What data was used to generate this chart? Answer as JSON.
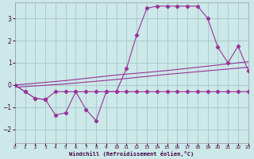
{
  "xlabel": "Windchill (Refroidissement éolien,°C)",
  "background_color": "#cce8e8",
  "grid_color": "#a8cccc",
  "line_color": "#993399",
  "xlim": [
    0,
    23
  ],
  "ylim": [
    -2.6,
    3.7
  ],
  "xticks": [
    0,
    1,
    2,
    3,
    4,
    5,
    6,
    7,
    8,
    9,
    10,
    11,
    12,
    13,
    14,
    15,
    16,
    17,
    18,
    19,
    20,
    21,
    22,
    23
  ],
  "yticks": [
    -2,
    -1,
    0,
    1,
    2,
    3
  ],
  "s1_x": [
    0,
    1,
    2,
    3,
    4,
    5,
    6,
    7,
    8,
    9,
    10,
    11,
    12,
    13,
    14,
    15,
    16,
    17,
    18,
    19,
    20,
    21,
    22,
    23
  ],
  "s1_y": [
    0.0,
    -0.3,
    -0.6,
    -0.65,
    -1.35,
    -1.25,
    -0.3,
    -1.1,
    -1.6,
    -0.3,
    -0.3,
    0.75,
    2.25,
    3.45,
    3.55,
    3.55,
    3.55,
    3.55,
    3.55,
    3.0,
    1.7,
    1.0,
    1.75,
    0.65
  ],
  "s2_x": [
    0,
    1,
    2,
    3,
    4,
    5,
    6,
    7,
    8,
    9,
    10,
    11,
    12,
    13,
    14,
    15,
    16,
    17,
    18,
    19,
    20,
    21,
    22,
    23
  ],
  "s2_y": [
    0.0,
    -0.3,
    -0.6,
    -0.65,
    -0.3,
    -0.3,
    -0.3,
    -0.3,
    -0.3,
    -0.3,
    -0.3,
    -0.3,
    -0.3,
    -0.3,
    -0.3,
    -0.3,
    -0.3,
    -0.3,
    -0.3,
    -0.3,
    -0.3,
    -0.3,
    -0.3,
    -0.3
  ],
  "s3_x": [
    0,
    5,
    10,
    15,
    20,
    23
  ],
  "s3_y": [
    0.0,
    0.2,
    0.45,
    0.65,
    0.9,
    1.05
  ],
  "s4_x": [
    0,
    5,
    10,
    15,
    20,
    23
  ],
  "s4_y": [
    -0.1,
    0.05,
    0.25,
    0.48,
    0.68,
    0.8
  ]
}
